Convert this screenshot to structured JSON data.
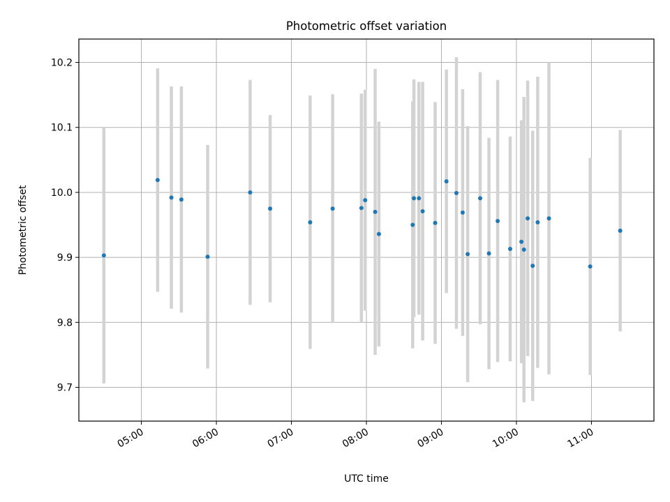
{
  "chart_data": {
    "type": "scatter",
    "title": "Photometric offset variation",
    "xlabel": "UTC time",
    "ylabel": "Photometric offset",
    "xlim": [
      "04:10",
      "11:50"
    ],
    "ylim": [
      9.648,
      10.236
    ],
    "x_ticks": [
      "05:00",
      "06:00",
      "07:00",
      "08:00",
      "09:00",
      "10:00",
      "11:00"
    ],
    "y_ticks": [
      "9.7",
      "9.8",
      "9.9",
      "10.0",
      "10.1",
      "10.2"
    ],
    "grid": true,
    "marker_color": "#1f77b4",
    "errorbar_color": "#d3d3d3",
    "series": [
      {
        "points": [
          {
            "x": "04:30",
            "y": 9.903,
            "yerr": 0.197
          },
          {
            "x": "05:13",
            "y": 10.019,
            "yerr": 0.172
          },
          {
            "x": "05:24",
            "y": 9.992,
            "yerr": 0.171
          },
          {
            "x": "05:32",
            "y": 9.989,
            "yerr": 0.174
          },
          {
            "x": "05:53",
            "y": 9.901,
            "yerr": 0.172
          },
          {
            "x": "06:27",
            "y": 10.0,
            "yerr": 0.173
          },
          {
            "x": "06:43",
            "y": 9.975,
            "yerr": 0.144
          },
          {
            "x": "07:15",
            "y": 9.954,
            "yerr": 0.195
          },
          {
            "x": "07:33",
            "y": 9.975,
            "yerr": 0.176
          },
          {
            "x": "07:56",
            "y": 9.976,
            "yerr": 0.176
          },
          {
            "x": "07:59",
            "y": 9.988,
            "yerr": 0.17
          },
          {
            "x": "08:07",
            "y": 9.97,
            "yerr": 0.22
          },
          {
            "x": "08:10",
            "y": 9.936,
            "yerr": 0.173
          },
          {
            "x": "08:37",
            "y": 9.95,
            "yerr": 0.19
          },
          {
            "x": "08:38",
            "y": 9.991,
            "yerr": 0.183
          },
          {
            "x": "08:42",
            "y": 9.991,
            "yerr": 0.179
          },
          {
            "x": "08:45",
            "y": 9.971,
            "yerr": 0.199
          },
          {
            "x": "08:55",
            "y": 9.953,
            "yerr": 0.186
          },
          {
            "x": "09:04",
            "y": 10.017,
            "yerr": 0.172
          },
          {
            "x": "09:12",
            "y": 9.999,
            "yerr": 0.209
          },
          {
            "x": "09:17",
            "y": 9.969,
            "yerr": 0.19
          },
          {
            "x": "09:21",
            "y": 9.905,
            "yerr": 0.197
          },
          {
            "x": "09:31",
            "y": 9.991,
            "yerr": 0.194
          },
          {
            "x": "09:38",
            "y": 9.906,
            "yerr": 0.178
          },
          {
            "x": "09:45",
            "y": 9.956,
            "yerr": 0.217
          },
          {
            "x": "09:55",
            "y": 9.913,
            "yerr": 0.173
          },
          {
            "x": "10:04",
            "y": 9.924,
            "yerr": 0.187
          },
          {
            "x": "10:06",
            "y": 9.912,
            "yerr": 0.235
          },
          {
            "x": "10:09",
            "y": 9.96,
            "yerr": 0.212
          },
          {
            "x": "10:13",
            "y": 9.887,
            "yerr": 0.208
          },
          {
            "x": "10:17",
            "y": 9.954,
            "yerr": 0.224
          },
          {
            "x": "10:26",
            "y": 9.96,
            "yerr": 0.24
          },
          {
            "x": "10:59",
            "y": 9.886,
            "yerr": 0.167
          },
          {
            "x": "11:23",
            "y": 9.941,
            "yerr": 0.155
          }
        ]
      }
    ]
  }
}
